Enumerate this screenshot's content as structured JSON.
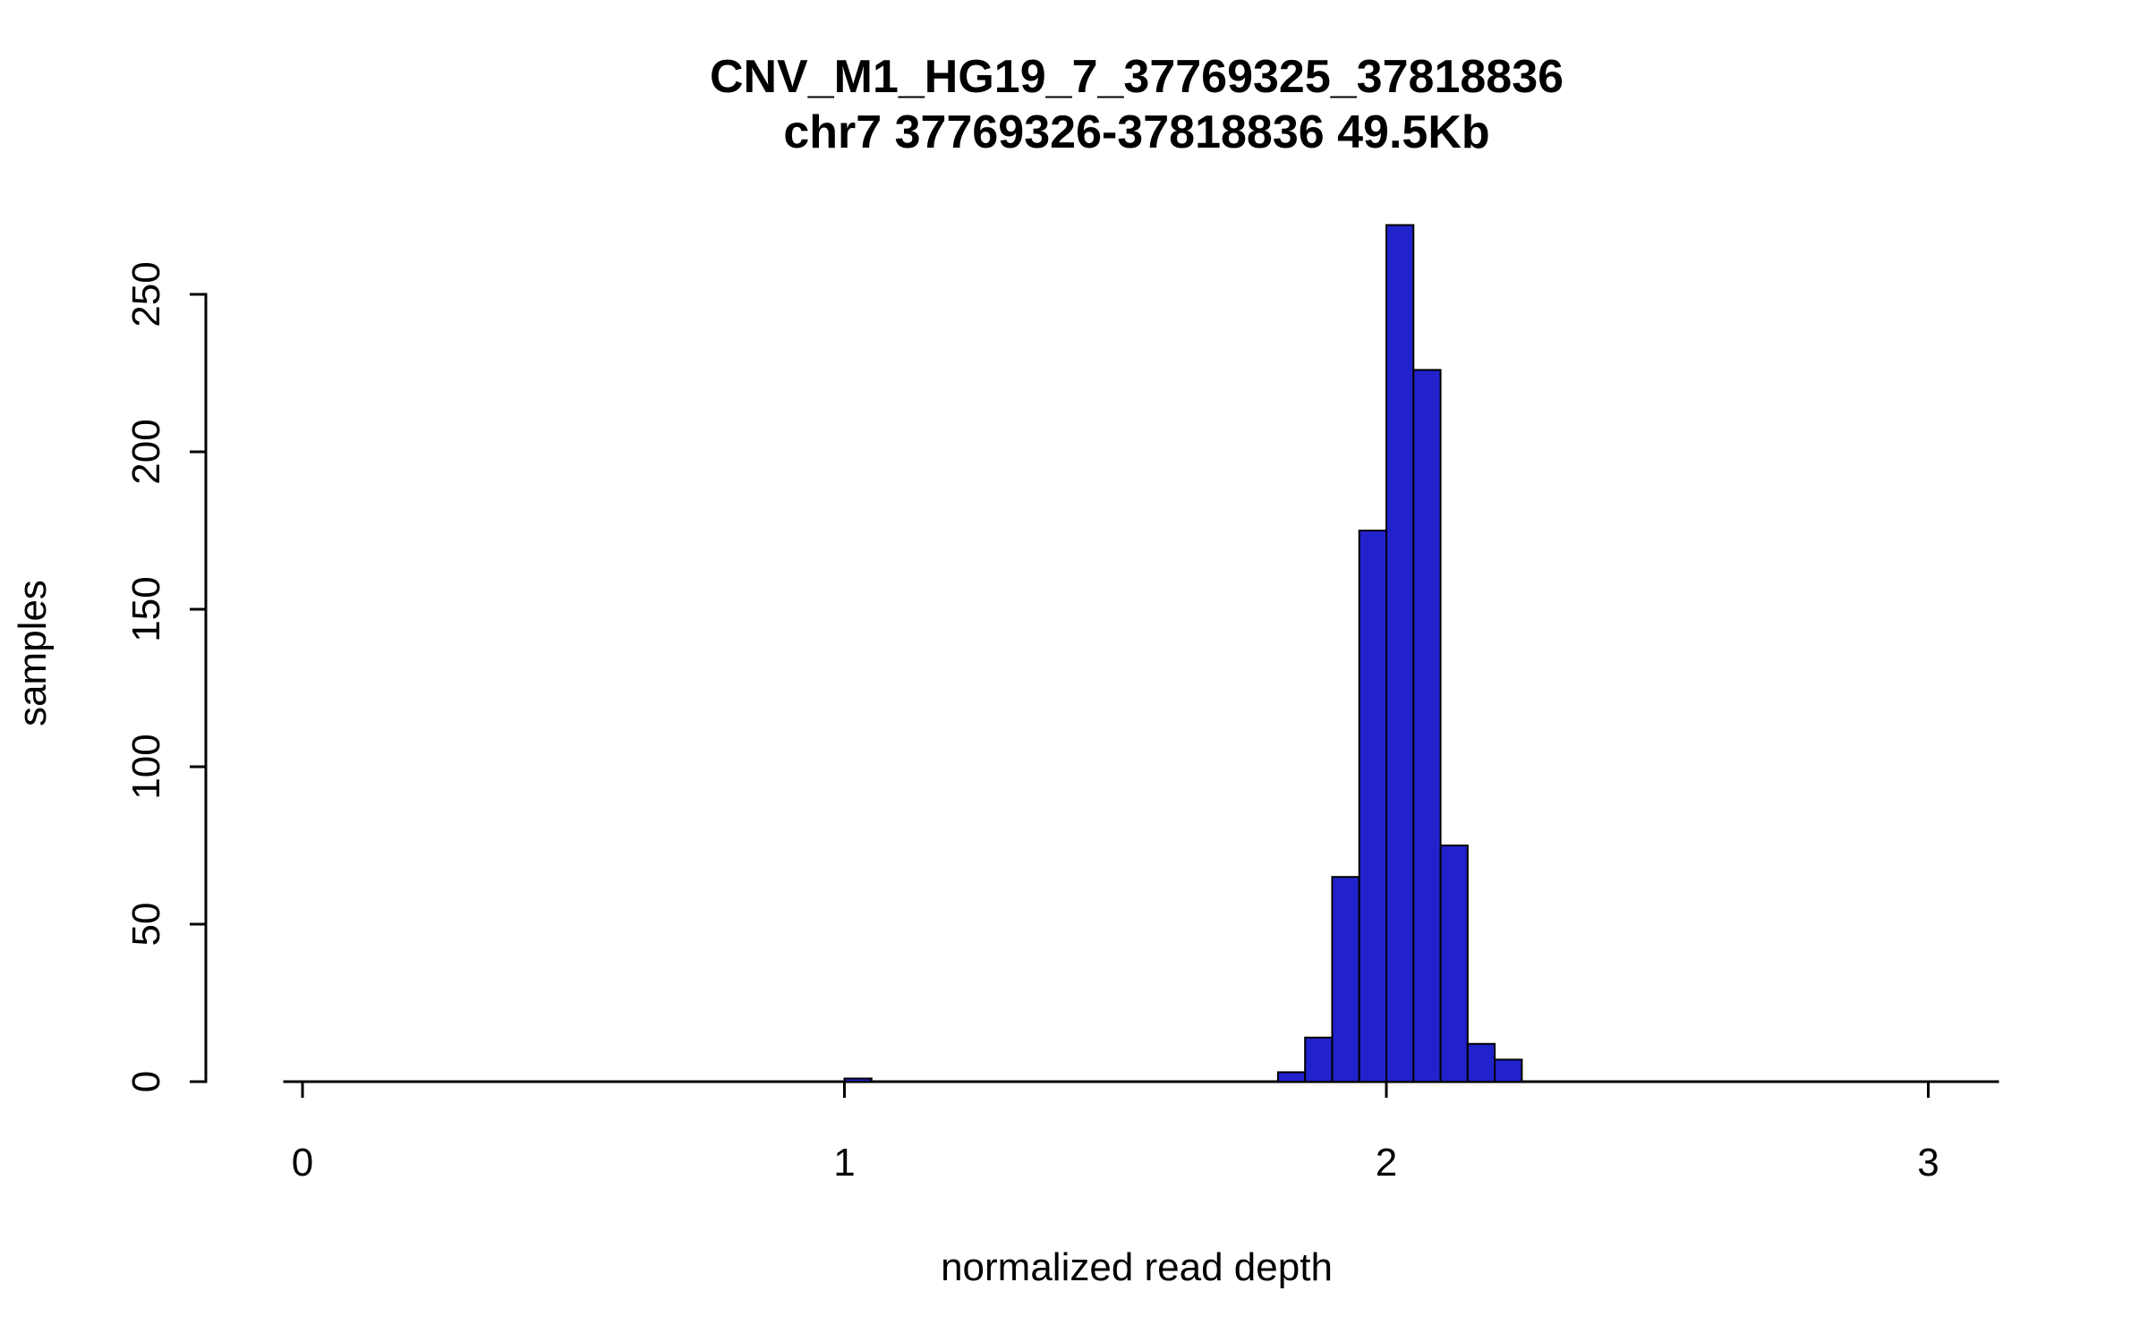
{
  "chart": {
    "title": "CNV_M1_HG19_7_37769325_37818836",
    "subtitle": "chr7 37769326-37818836 49.5Kb",
    "xlabel": "normalized read depth",
    "ylabel": "samples"
  },
  "chart_data": {
    "type": "bar",
    "subtype": "histogram",
    "title": "CNV_M1_HG19_7_37769325_37818836",
    "subtitle": "chr7 37769326-37818836 49.5Kb",
    "xlabel": "normalized read depth",
    "ylabel": "samples",
    "xlim": [
      0,
      3.15
    ],
    "ylim": [
      0,
      275
    ],
    "x_ticks": [
      0,
      1,
      2,
      3
    ],
    "y_ticks": [
      0,
      50,
      100,
      150,
      200,
      250
    ],
    "grid": false,
    "legend": "none",
    "bar_fill": "#2222cc",
    "bar_border": "#000000",
    "bin_width": 0.05,
    "bins": [
      {
        "x": 1.0,
        "count": 1
      },
      {
        "x": 1.8,
        "count": 3
      },
      {
        "x": 1.85,
        "count": 14
      },
      {
        "x": 1.9,
        "count": 65
      },
      {
        "x": 1.95,
        "count": 175
      },
      {
        "x": 2.0,
        "count": 272
      },
      {
        "x": 2.05,
        "count": 226
      },
      {
        "x": 2.1,
        "count": 75
      },
      {
        "x": 2.15,
        "count": 12
      },
      {
        "x": 2.2,
        "count": 7
      }
    ]
  }
}
